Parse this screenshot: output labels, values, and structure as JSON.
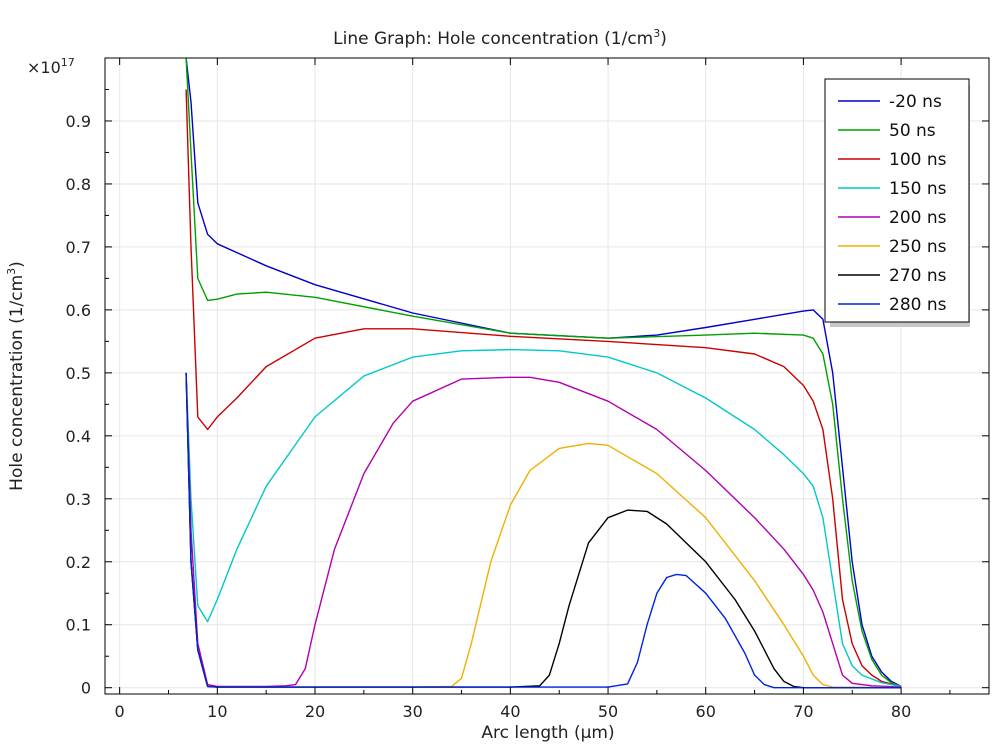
{
  "chart_data": {
    "type": "line",
    "title": "Line Graph: Hole concentration (1/cm",
    "title_sup": "3",
    "title_end": ")",
    "xlabel": "Arc length (µm)",
    "ylabel": "Hole concentration (1/cm",
    "ylabel_sup": "3",
    "ylabel_end": ")",
    "y_multiplier_base": "×10",
    "y_multiplier_exp": "17",
    "xlim": [
      -1.5,
      89
    ],
    "ylim": [
      -0.01,
      1.0
    ],
    "x_ticks": [
      0,
      10,
      20,
      30,
      40,
      50,
      60,
      70,
      80
    ],
    "x_tick_labels": [
      "0",
      "10",
      "20",
      "30",
      "40",
      "50",
      "60",
      "70",
      "80"
    ],
    "y_ticks": [
      0,
      0.1,
      0.2,
      0.3,
      0.4,
      0.5,
      0.6,
      0.7,
      0.8,
      0.9
    ],
    "y_tick_labels": [
      "0",
      "0.1",
      "0.2",
      "0.3",
      "0.4",
      "0.5",
      "0.6",
      "0.7",
      "0.8",
      "0.9"
    ],
    "grid": true,
    "legend_position": "top-right",
    "series": [
      {
        "name": "-20 ns",
        "color": "#0000cc",
        "points": [
          [
            6.8,
            1.0
          ],
          [
            7.3,
            0.93
          ],
          [
            8,
            0.77
          ],
          [
            9,
            0.72
          ],
          [
            10,
            0.705
          ],
          [
            15,
            0.67
          ],
          [
            20,
            0.64
          ],
          [
            30,
            0.595
          ],
          [
            40,
            0.563
          ],
          [
            50,
            0.555
          ],
          [
            55,
            0.56
          ],
          [
            60,
            0.572
          ],
          [
            65,
            0.585
          ],
          [
            70,
            0.598
          ],
          [
            71,
            0.6
          ],
          [
            72,
            0.585
          ],
          [
            73,
            0.5
          ],
          [
            74,
            0.35
          ],
          [
            75,
            0.2
          ],
          [
            76,
            0.1
          ],
          [
            77,
            0.05
          ],
          [
            78,
            0.025
          ],
          [
            79,
            0.01
          ],
          [
            80,
            0.002
          ]
        ]
      },
      {
        "name": "50 ns",
        "color": "#00a000",
        "points": [
          [
            6.8,
            1.0
          ],
          [
            7.3,
            0.85
          ],
          [
            8,
            0.65
          ],
          [
            9,
            0.615
          ],
          [
            10,
            0.617
          ],
          [
            12,
            0.625
          ],
          [
            15,
            0.628
          ],
          [
            20,
            0.62
          ],
          [
            30,
            0.59
          ],
          [
            40,
            0.563
          ],
          [
            50,
            0.555
          ],
          [
            60,
            0.56
          ],
          [
            65,
            0.563
          ],
          [
            70,
            0.56
          ],
          [
            71,
            0.555
          ],
          [
            72,
            0.53
          ],
          [
            73,
            0.45
          ],
          [
            74,
            0.3
          ],
          [
            75,
            0.17
          ],
          [
            76,
            0.09
          ],
          [
            77,
            0.045
          ],
          [
            78,
            0.02
          ],
          [
            79,
            0.008
          ],
          [
            80,
            0.002
          ]
        ]
      },
      {
        "name": "100 ns",
        "color": "#cc0000",
        "points": [
          [
            6.8,
            0.95
          ],
          [
            7.3,
            0.7
          ],
          [
            8,
            0.43
          ],
          [
            9,
            0.41
          ],
          [
            10,
            0.43
          ],
          [
            12,
            0.46
          ],
          [
            15,
            0.51
          ],
          [
            20,
            0.555
          ],
          [
            25,
            0.57
          ],
          [
            30,
            0.57
          ],
          [
            40,
            0.558
          ],
          [
            50,
            0.55
          ],
          [
            60,
            0.54
          ],
          [
            65,
            0.53
          ],
          [
            68,
            0.51
          ],
          [
            70,
            0.48
          ],
          [
            71,
            0.455
          ],
          [
            72,
            0.41
          ],
          [
            73,
            0.3
          ],
          [
            74,
            0.14
          ],
          [
            75,
            0.07
          ],
          [
            76,
            0.035
          ],
          [
            77,
            0.02
          ],
          [
            78,
            0.01
          ],
          [
            80,
            0.002
          ]
        ]
      },
      {
        "name": "150 ns",
        "color": "#00c8c8",
        "points": [
          [
            6.8,
            0.5
          ],
          [
            7.3,
            0.3
          ],
          [
            8,
            0.13
          ],
          [
            9,
            0.105
          ],
          [
            10,
            0.14
          ],
          [
            12,
            0.22
          ],
          [
            15,
            0.32
          ],
          [
            20,
            0.43
          ],
          [
            25,
            0.495
          ],
          [
            30,
            0.525
          ],
          [
            35,
            0.535
          ],
          [
            40,
            0.537
          ],
          [
            45,
            0.535
          ],
          [
            50,
            0.525
          ],
          [
            55,
            0.5
          ],
          [
            60,
            0.46
          ],
          [
            65,
            0.41
          ],
          [
            68,
            0.37
          ],
          [
            70,
            0.34
          ],
          [
            71,
            0.32
          ],
          [
            72,
            0.27
          ],
          [
            73,
            0.17
          ],
          [
            74,
            0.07
          ],
          [
            75,
            0.035
          ],
          [
            76,
            0.02
          ],
          [
            78,
            0.008
          ],
          [
            80,
            0.002
          ]
        ]
      },
      {
        "name": "200 ns",
        "color": "#b000b0",
        "points": [
          [
            6.8,
            0.5
          ],
          [
            7.3,
            0.25
          ],
          [
            8,
            0.07
          ],
          [
            9,
            0.005
          ],
          [
            10,
            0.002
          ],
          [
            15,
            0.002
          ],
          [
            17,
            0.003
          ],
          [
            18,
            0.005
          ],
          [
            19,
            0.03
          ],
          [
            20,
            0.1
          ],
          [
            22,
            0.22
          ],
          [
            25,
            0.34
          ],
          [
            28,
            0.42
          ],
          [
            30,
            0.455
          ],
          [
            35,
            0.49
          ],
          [
            40,
            0.493
          ],
          [
            42,
            0.493
          ],
          [
            45,
            0.485
          ],
          [
            50,
            0.455
          ],
          [
            55,
            0.41
          ],
          [
            60,
            0.345
          ],
          [
            65,
            0.27
          ],
          [
            68,
            0.22
          ],
          [
            70,
            0.18
          ],
          [
            71,
            0.155
          ],
          [
            72,
            0.12
          ],
          [
            73,
            0.07
          ],
          [
            74,
            0.02
          ],
          [
            75,
            0.007
          ],
          [
            77,
            0.003
          ],
          [
            80,
            0.001
          ]
        ]
      },
      {
        "name": "250 ns",
        "color": "#f0b000",
        "points": [
          [
            6.8,
            0.5
          ],
          [
            7.3,
            0.2
          ],
          [
            8,
            0.06
          ],
          [
            9,
            0.002
          ],
          [
            10,
            0.001
          ],
          [
            30,
            0.001
          ],
          [
            34,
            0.002
          ],
          [
            35,
            0.015
          ],
          [
            36,
            0.07
          ],
          [
            38,
            0.2
          ],
          [
            40,
            0.29
          ],
          [
            42,
            0.345
          ],
          [
            45,
            0.38
          ],
          [
            48,
            0.388
          ],
          [
            50,
            0.385
          ],
          [
            55,
            0.34
          ],
          [
            60,
            0.27
          ],
          [
            65,
            0.17
          ],
          [
            68,
            0.1
          ],
          [
            70,
            0.05
          ],
          [
            71,
            0.02
          ],
          [
            72,
            0.005
          ],
          [
            73,
            0.001
          ],
          [
            80,
            0.0
          ]
        ]
      },
      {
        "name": "270 ns",
        "color": "#000000",
        "points": [
          [
            6.8,
            0.5
          ],
          [
            7.3,
            0.2
          ],
          [
            8,
            0.06
          ],
          [
            9,
            0.002
          ],
          [
            10,
            0.001
          ],
          [
            40,
            0.001
          ],
          [
            43,
            0.003
          ],
          [
            44,
            0.02
          ],
          [
            45,
            0.07
          ],
          [
            46,
            0.13
          ],
          [
            48,
            0.23
          ],
          [
            50,
            0.27
          ],
          [
            52,
            0.282
          ],
          [
            54,
            0.28
          ],
          [
            56,
            0.26
          ],
          [
            60,
            0.2
          ],
          [
            63,
            0.14
          ],
          [
            65,
            0.09
          ],
          [
            67,
            0.03
          ],
          [
            68,
            0.01
          ],
          [
            69,
            0.002
          ],
          [
            70,
            0.0
          ],
          [
            80,
            0.0
          ]
        ]
      },
      {
        "name": "280 ns",
        "color": "#0022dd",
        "points": [
          [
            6.8,
            0.5
          ],
          [
            7.3,
            0.2
          ],
          [
            8,
            0.06
          ],
          [
            9,
            0.002
          ],
          [
            10,
            0.001
          ],
          [
            50,
            0.001
          ],
          [
            52,
            0.006
          ],
          [
            53,
            0.04
          ],
          [
            54,
            0.1
          ],
          [
            55,
            0.15
          ],
          [
            56,
            0.175
          ],
          [
            57,
            0.18
          ],
          [
            58,
            0.178
          ],
          [
            60,
            0.15
          ],
          [
            62,
            0.11
          ],
          [
            64,
            0.055
          ],
          [
            65,
            0.02
          ],
          [
            66,
            0.005
          ],
          [
            67,
            0.0
          ],
          [
            80,
            0.0
          ]
        ]
      }
    ]
  }
}
